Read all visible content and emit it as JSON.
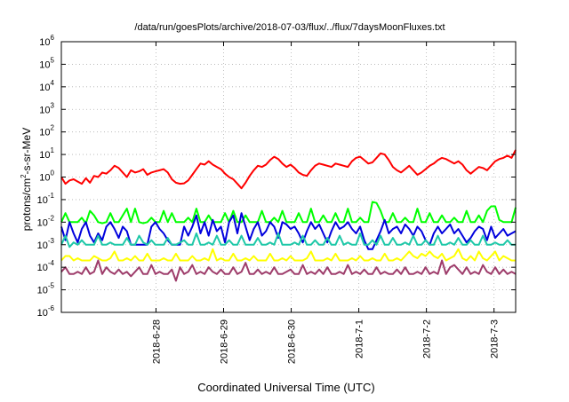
{
  "chart_data": {
    "type": "line",
    "title": "/data/run/goesPlots/archive/2018-07-03/flux/../flux/7daysMoonFluxes.txt",
    "xlabel": "Coordinated Universal Time (UTC)",
    "ylabel": {
      "base": "protons/cm",
      "sup": "2",
      "rest": "-s-sr-MeV"
    },
    "y_scale": "log",
    "ylim_exp": [
      -6,
      6
    ],
    "y_ticks": [
      {
        "base": "10",
        "exp": "6"
      },
      {
        "base": "10",
        "exp": "5"
      },
      {
        "base": "10",
        "exp": "4"
      },
      {
        "base": "10",
        "exp": "3"
      },
      {
        "base": "10",
        "exp": "2"
      },
      {
        "base": "10",
        "exp": "1"
      },
      {
        "base": "10",
        "exp": "0"
      },
      {
        "base": "10",
        "exp": "-1"
      },
      {
        "base": "10",
        "exp": "-2"
      },
      {
        "base": "10",
        "exp": "-3"
      },
      {
        "base": "10",
        "exp": "-4"
      },
      {
        "base": "10",
        "exp": "-5"
      },
      {
        "base": "10",
        "exp": "-6"
      }
    ],
    "x_range_days": [
      -1.4,
      5.32
    ],
    "x_ticks": [
      {
        "label": "2018-6-28",
        "day": 0
      },
      {
        "label": "2018-6-29",
        "day": 1
      },
      {
        "label": "2018-6-30",
        "day": 2
      },
      {
        "label": "2018-7-1",
        "day": 3
      },
      {
        "label": "2018-7-2",
        "day": 4
      },
      {
        "label": "2018-7-3",
        "day": 5
      }
    ],
    "grid": true,
    "series": [
      {
        "color": "#ff0000",
        "log10_values": [
          0.0,
          -0.3,
          -0.15,
          -0.1,
          -0.2,
          -0.3,
          -0.05,
          -0.25,
          0.05,
          0.0,
          0.2,
          0.15,
          0.3,
          0.5,
          0.4,
          0.2,
          0.0,
          0.3,
          0.2,
          0.25,
          0.35,
          0.1,
          0.2,
          0.25,
          0.3,
          0.35,
          0.2,
          -0.1,
          -0.25,
          -0.3,
          -0.28,
          -0.15,
          0.1,
          0.35,
          0.6,
          0.55,
          0.7,
          0.55,
          0.45,
          0.35,
          0.15,
          0.0,
          -0.1,
          -0.3,
          -0.5,
          -0.25,
          0.05,
          0.3,
          0.5,
          0.45,
          0.55,
          0.75,
          0.9,
          0.8,
          0.6,
          0.45,
          0.55,
          0.4,
          0.2,
          0.1,
          0.05,
          0.3,
          0.5,
          0.6,
          0.55,
          0.5,
          0.45,
          0.6,
          0.55,
          0.5,
          0.45,
          0.7,
          0.85,
          0.9,
          0.75,
          0.6,
          0.65,
          0.85,
          1.05,
          1.0,
          0.75,
          0.45,
          0.3,
          0.2,
          0.35,
          0.5,
          0.3,
          0.1,
          0.2,
          0.35,
          0.5,
          0.6,
          0.75,
          0.85,
          0.8,
          0.7,
          0.6,
          0.7,
          0.55,
          0.3,
          0.15,
          0.3,
          0.45,
          0.4,
          0.3,
          0.5,
          0.7,
          0.8,
          0.85,
          0.95,
          0.85,
          1.2
        ]
      },
      {
        "color": "#00ff00",
        "log10_values": [
          -2.0,
          -1.6,
          -2.0,
          -2.0,
          -2.0,
          -1.8,
          -2.05,
          -1.5,
          -1.7,
          -2.0,
          -2.05,
          -2.0,
          -1.6,
          -2.0,
          -2.0,
          -1.7,
          -1.4,
          -2.0,
          -1.4,
          -2.0,
          -2.05,
          -2.0,
          -1.8,
          -2.0,
          -2.0,
          -1.5,
          -2.0,
          -1.6,
          -2.0,
          -2.0,
          -2.0,
          -1.8,
          -2.0,
          -1.4,
          -2.0,
          -2.0,
          -1.7,
          -2.0,
          -2.0,
          -2.0,
          -1.6,
          -2.0,
          -1.5,
          -2.0,
          -2.0,
          -1.7,
          -2.0,
          -2.0,
          -2.0,
          -1.5,
          -2.0,
          -2.0,
          -1.8,
          -2.0,
          -1.5,
          -2.0,
          -2.0,
          -2.0,
          -1.6,
          -2.0,
          -2.0,
          -1.4,
          -2.0,
          -2.0,
          -1.7,
          -2.0,
          -2.0,
          -1.6,
          -2.0,
          -2.0,
          -1.4,
          -2.0,
          -2.0,
          -1.8,
          -2.0,
          -2.0,
          -1.1,
          -1.15,
          -1.5,
          -2.0,
          -2.0,
          -1.6,
          -2.0,
          -2.0,
          -1.8,
          -2.0,
          -2.0,
          -1.4,
          -2.0,
          -2.0,
          -1.6,
          -2.0,
          -2.0,
          -1.7,
          -2.0,
          -2.0,
          -1.8,
          -2.0,
          -2.0,
          -1.5,
          -2.0,
          -2.0,
          -1.7,
          -2.0,
          -1.5,
          -1.3,
          -1.3,
          -1.9,
          -2.0,
          -2.0,
          -2.0,
          -1.35
        ]
      },
      {
        "color": "#0000dd",
        "log10_values": [
          -2.2,
          -2.8,
          -2.0,
          -2.5,
          -2.9,
          -2.3,
          -2.0,
          -2.6,
          -2.9,
          -2.5,
          -2.8,
          -2.2,
          -2.0,
          -2.3,
          -2.7,
          -2.2,
          -2.4,
          -3.0,
          -3.0,
          -3.0,
          -3.0,
          -3.0,
          -2.2,
          -2.0,
          -2.3,
          -2.5,
          -2.8,
          -3.0,
          -3.0,
          -3.0,
          -2.2,
          -2.6,
          -2.2,
          -1.7,
          -2.5,
          -2.0,
          -2.6,
          -1.9,
          -2.4,
          -2.2,
          -2.9,
          -2.0,
          -1.7,
          -2.5,
          -1.6,
          -2.2,
          -2.8,
          -2.3,
          -2.0,
          -2.6,
          -2.4,
          -2.0,
          -2.2,
          -2.7,
          -2.0,
          -2.1,
          -2.3,
          -2.2,
          -2.5,
          -2.9,
          -2.4,
          -2.0,
          -2.3,
          -2.1,
          -2.5,
          -2.9,
          -2.4,
          -2.0,
          -2.3,
          -2.2,
          -2.0,
          -2.3,
          -2.5,
          -2.2,
          -2.8,
          -3.2,
          -3.2,
          -2.8,
          -2.4,
          -1.9,
          -2.5,
          -2.3,
          -2.2,
          -2.5,
          -2.1,
          -2.3,
          -2.6,
          -2.2,
          -2.4,
          -2.8,
          -3.0,
          -2.5,
          -2.2,
          -2.5,
          -2.3,
          -2.1,
          -2.5,
          -2.3,
          -2.6,
          -2.9,
          -2.7,
          -2.4,
          -2.2,
          -2.3,
          -2.8,
          -2.2,
          -2.7,
          -2.5,
          -2.3,
          -2.6,
          -2.5,
          -2.4
        ]
      },
      {
        "color": "#1ec8a8",
        "log10_values": [
          -3.0,
          -2.6,
          -3.1,
          -2.9,
          -3.0,
          -2.8,
          -3.0,
          -3.0,
          -3.0,
          -2.6,
          -3.0,
          -3.0,
          -2.9,
          -3.0,
          -3.0,
          -3.0,
          -2.7,
          -3.0,
          -3.0,
          -2.6,
          -2.9,
          -3.0,
          -2.8,
          -3.0,
          -3.0,
          -3.0,
          -2.7,
          -3.0,
          -3.0,
          -2.9,
          -2.8,
          -3.0,
          -3.0,
          -2.5,
          -3.0,
          -3.0,
          -2.9,
          -3.0,
          -2.6,
          -3.0,
          -3.0,
          -2.8,
          -3.0,
          -3.0,
          -2.6,
          -3.0,
          -3.0,
          -3.0,
          -2.7,
          -3.0,
          -3.0,
          -2.9,
          -3.0,
          -2.5,
          -3.0,
          -3.0,
          -3.0,
          -2.9,
          -3.0,
          -2.6,
          -3.0,
          -3.0,
          -2.8,
          -3.0,
          -3.0,
          -2.7,
          -3.0,
          -3.0,
          -2.6,
          -3.0,
          -2.9,
          -3.0,
          -3.0,
          -2.5,
          -3.0,
          -3.0,
          -2.8,
          -3.0,
          -2.6,
          -3.0,
          -3.0,
          -2.7,
          -3.0,
          -3.0,
          -2.9,
          -3.0,
          -2.6,
          -3.0,
          -3.0,
          -2.8,
          -3.0,
          -3.0,
          -2.6,
          -3.0,
          -3.0,
          -2.9,
          -3.0,
          -2.7,
          -3.0,
          -3.0,
          -2.8,
          -3.0,
          -3.0,
          -2.6,
          -3.0,
          -3.0,
          -2.9,
          -3.0,
          -3.0,
          -2.8,
          -3.0,
          -3.0
        ]
      },
      {
        "color": "#ffff00",
        "log10_values": [
          -3.7,
          -3.5,
          -3.5,
          -3.7,
          -3.6,
          -3.7,
          -3.7,
          -3.7,
          -3.5,
          -3.6,
          -3.7,
          -3.7,
          -3.6,
          -3.3,
          -3.7,
          -3.7,
          -3.6,
          -3.7,
          -3.5,
          -3.7,
          -3.7,
          -3.4,
          -3.7,
          -3.7,
          -3.7,
          -3.6,
          -3.7,
          -3.7,
          -3.4,
          -3.7,
          -3.7,
          -3.7,
          -3.5,
          -3.7,
          -3.7,
          -3.6,
          -3.7,
          -3.2,
          -3.7,
          -3.6,
          -3.7,
          -3.7,
          -3.4,
          -3.7,
          -3.7,
          -3.6,
          -3.7,
          -3.5,
          -3.7,
          -3.7,
          -3.7,
          -3.4,
          -3.7,
          -3.7,
          -3.6,
          -3.7,
          -3.5,
          -3.7,
          -3.7,
          -3.7,
          -3.6,
          -3.3,
          -3.7,
          -3.7,
          -3.7,
          -3.6,
          -3.7,
          -3.4,
          -3.7,
          -3.7,
          -3.7,
          -3.6,
          -3.7,
          -3.5,
          -3.7,
          -3.7,
          -3.6,
          -3.7,
          -3.7,
          -3.4,
          -3.7,
          -3.7,
          -3.6,
          -3.7,
          -3.5,
          -3.3,
          -3.5,
          -3.6,
          -3.4,
          -3.5,
          -3.3,
          -3.5,
          -3.6,
          -3.4,
          -3.7,
          -3.6,
          -3.5,
          -3.2,
          -3.6,
          -3.7,
          -3.5,
          -3.7,
          -3.3,
          -3.6,
          -3.7,
          -3.5,
          -3.3,
          -3.7,
          -3.5,
          -3.6,
          -3.7,
          -3.7
        ]
      },
      {
        "color": "#9e3d6b",
        "log10_values": [
          -4.2,
          -4.0,
          -4.3,
          -4.3,
          -4.2,
          -4.3,
          -4.0,
          -4.3,
          -4.2,
          -3.7,
          -4.3,
          -4.0,
          -4.2,
          -4.3,
          -4.1,
          -4.3,
          -4.2,
          -4.4,
          -4.2,
          -4.0,
          -4.3,
          -4.3,
          -3.9,
          -4.3,
          -4.2,
          -4.3,
          -4.3,
          -4.1,
          -4.6,
          -4.0,
          -4.3,
          -4.2,
          -3.9,
          -4.3,
          -4.2,
          -4.3,
          -4.0,
          -4.2,
          -4.3,
          -4.1,
          -4.3,
          -4.3,
          -4.0,
          -4.3,
          -4.2,
          -3.8,
          -4.3,
          -4.3,
          -4.1,
          -4.3,
          -4.2,
          -4.3,
          -4.0,
          -4.3,
          -4.3,
          -4.2,
          -4.1,
          -4.3,
          -4.3,
          -3.9,
          -4.3,
          -4.2,
          -4.3,
          -4.1,
          -4.3,
          -4.0,
          -4.3,
          -4.3,
          -4.2,
          -4.3,
          -3.9,
          -4.3,
          -4.2,
          -4.3,
          -4.1,
          -4.3,
          -4.3,
          -4.0,
          -4.3,
          -4.2,
          -4.3,
          -4.3,
          -4.1,
          -4.3,
          -4.0,
          -4.3,
          -4.3,
          -4.2,
          -4.3,
          -4.0,
          -4.3,
          -4.2,
          -4.3,
          -3.7,
          -4.3,
          -4.0,
          -3.9,
          -4.1,
          -4.3,
          -4.0,
          -4.3,
          -4.2,
          -4.3,
          -3.9,
          -4.2,
          -4.3,
          -4.0,
          -4.3,
          -4.1,
          -4.3,
          -4.2,
          -4.3
        ]
      }
    ]
  }
}
